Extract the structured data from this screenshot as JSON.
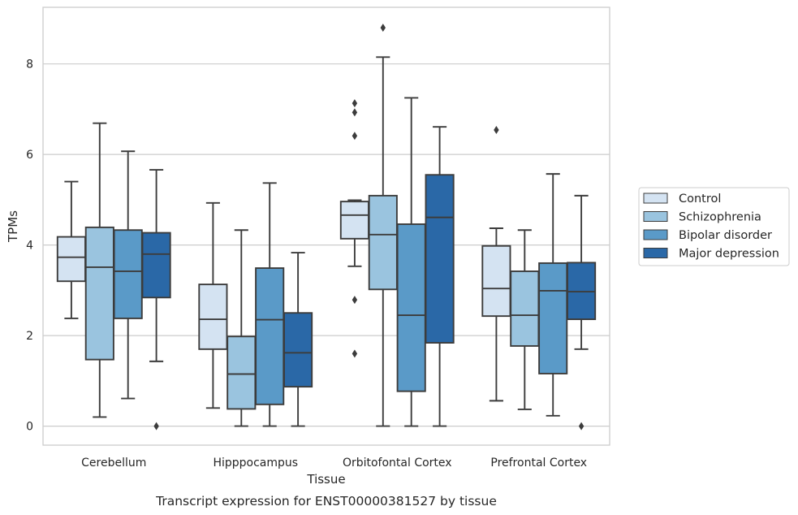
{
  "chart_data": {
    "type": "boxplot",
    "xlabel": "Tissue",
    "ylabel": "TPMs",
    "caption": "Transcript expression for ENST00000381527 by tissue",
    "categories": [
      "Cerebellum",
      "Hipppocampus",
      "Orbitofontal Cortex",
      "Prefrontal Cortex"
    ],
    "ylim": [
      -0.42,
      9.25
    ],
    "yticks": [
      0,
      2,
      4,
      6,
      8
    ],
    "grid": true,
    "legend_position": "right",
    "series": [
      {
        "name": "Control",
        "color": "#d4e3f2",
        "boxes": [
          {
            "whislo": 2.38,
            "q1": 3.2,
            "med": 3.73,
            "q3": 4.18,
            "whishi": 5.4,
            "fliers": []
          },
          {
            "whislo": 0.4,
            "q1": 1.7,
            "med": 2.36,
            "q3": 3.13,
            "whishi": 4.93,
            "fliers": []
          },
          {
            "whislo": 3.53,
            "q1": 4.14,
            "med": 4.66,
            "q3": 4.96,
            "whishi": 4.99,
            "fliers": [
              7.13,
              6.93,
              6.41,
              2.79,
              1.6
            ]
          },
          {
            "whislo": 0.56,
            "q1": 2.43,
            "med": 3.04,
            "q3": 3.98,
            "whishi": 4.37,
            "fliers": [
              6.54
            ]
          }
        ]
      },
      {
        "name": "Schizophrenia",
        "color": "#9ac4df",
        "boxes": [
          {
            "whislo": 0.2,
            "q1": 1.47,
            "med": 3.51,
            "q3": 4.39,
            "whishi": 6.69,
            "fliers": []
          },
          {
            "whislo": 0.0,
            "q1": 0.38,
            "med": 1.15,
            "q3": 1.98,
            "whishi": 4.33,
            "fliers": []
          },
          {
            "whislo": 0.0,
            "q1": 3.02,
            "med": 4.23,
            "q3": 5.09,
            "whishi": 8.15,
            "fliers": [
              8.8
            ]
          },
          {
            "whislo": 0.37,
            "q1": 1.77,
            "med": 2.45,
            "q3": 3.42,
            "whishi": 4.33,
            "fliers": []
          }
        ]
      },
      {
        "name": "Bipolar disorder",
        "color": "#5a9ac8",
        "boxes": [
          {
            "whislo": 0.61,
            "q1": 2.38,
            "med": 3.42,
            "q3": 4.33,
            "whishi": 6.07,
            "fliers": []
          },
          {
            "whislo": 0.0,
            "q1": 0.48,
            "med": 2.35,
            "q3": 3.49,
            "whishi": 5.37,
            "fliers": []
          },
          {
            "whislo": 0.0,
            "q1": 0.77,
            "med": 2.45,
            "q3": 4.46,
            "whishi": 7.25,
            "fliers": []
          },
          {
            "whislo": 0.23,
            "q1": 1.16,
            "med": 2.99,
            "q3": 3.6,
            "whishi": 5.57,
            "fliers": []
          }
        ]
      },
      {
        "name": "Major depression",
        "color": "#2a68a7",
        "boxes": [
          {
            "whislo": 1.43,
            "q1": 2.84,
            "med": 3.8,
            "q3": 4.27,
            "whishi": 5.66,
            "fliers": [
              0.0
            ]
          },
          {
            "whislo": 0.0,
            "q1": 0.87,
            "med": 1.62,
            "q3": 2.5,
            "whishi": 3.83,
            "fliers": []
          },
          {
            "whislo": 0.0,
            "q1": 1.84,
            "med": 4.61,
            "q3": 5.55,
            "whishi": 6.61,
            "fliers": []
          },
          {
            "whislo": 1.7,
            "q1": 2.36,
            "med": 2.97,
            "q3": 3.61,
            "whishi": 5.09,
            "fliers": [
              0.0
            ]
          }
        ]
      }
    ]
  }
}
